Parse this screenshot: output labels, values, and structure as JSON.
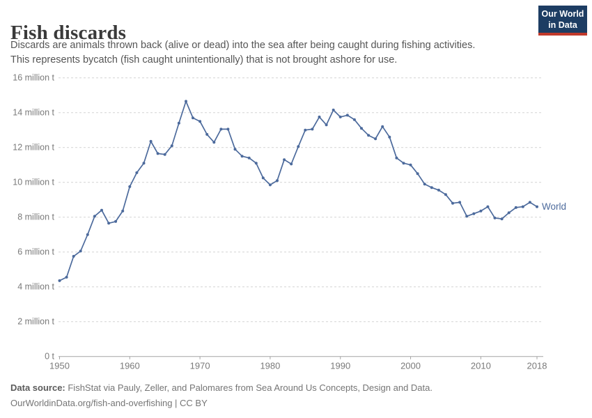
{
  "header": {
    "title": "Fish discards",
    "subtitle_line1": "Discards are animals thrown back (alive or dead) into the sea after being caught during fishing activities.",
    "subtitle_line2": "This represents bycatch (fish caught unintentionally) that is not brought ashore for use.",
    "logo": {
      "line1": "Our World",
      "line2": "in Data",
      "bg_color": "#1d3d63",
      "accent_color": "#c0392b"
    }
  },
  "chart_data": {
    "type": "line",
    "title": "Fish discards",
    "unit": "million t",
    "grid": "horizontal-dashed",
    "legend_position": "end-of-line",
    "ylim": [
      0,
      16
    ],
    "yticks": [
      0,
      2,
      4,
      6,
      8,
      10,
      12,
      14,
      16
    ],
    "ytick_labels": [
      "0 t",
      "2 million t",
      "4 million t",
      "6 million t",
      "8 million t",
      "10 million t",
      "12 million t",
      "14 million t",
      "16 million t"
    ],
    "xticks": [
      1950,
      1960,
      1970,
      1980,
      1990,
      2000,
      2010,
      2018
    ],
    "series": [
      {
        "name": "World",
        "start_year": 1950,
        "end_year": 2018,
        "values": [
          4.35,
          4.55,
          5.75,
          6.05,
          7.0,
          8.05,
          8.4,
          7.65,
          7.75,
          8.35,
          9.75,
          10.55,
          11.1,
          12.35,
          11.65,
          11.6,
          12.1,
          13.4,
          14.65,
          13.7,
          13.5,
          12.75,
          12.3,
          13.05,
          13.05,
          11.9,
          11.5,
          11.4,
          11.1,
          10.25,
          9.85,
          10.1,
          11.3,
          11.05,
          12.05,
          13.0,
          13.05,
          13.75,
          13.3,
          14.15,
          13.75,
          13.85,
          13.6,
          13.1,
          12.7,
          12.5,
          13.2,
          12.6,
          11.4,
          11.1,
          11.0,
          10.5,
          9.9,
          9.7,
          9.55,
          9.3,
          8.8,
          8.85,
          8.05,
          8.2,
          8.35,
          8.6,
          7.95,
          7.9,
          8.25,
          8.55,
          8.6,
          8.85,
          8.6
        ]
      }
    ],
    "colors": {
      "line": "#4c6a9c",
      "series_label": "#4c6a9c",
      "gridline": "#d4d4d4",
      "axis_line": "#a3a3a3",
      "tick_label": "#7a7a7a"
    }
  },
  "footer": {
    "datasource_label": "Data source:",
    "datasource_text": " FishStat via Pauly, Zeller, and Palomares from Sea Around Us Concepts, Design and Data.",
    "license_line": "OurWorldinData.org/fish-and-overfishing | CC BY"
  }
}
